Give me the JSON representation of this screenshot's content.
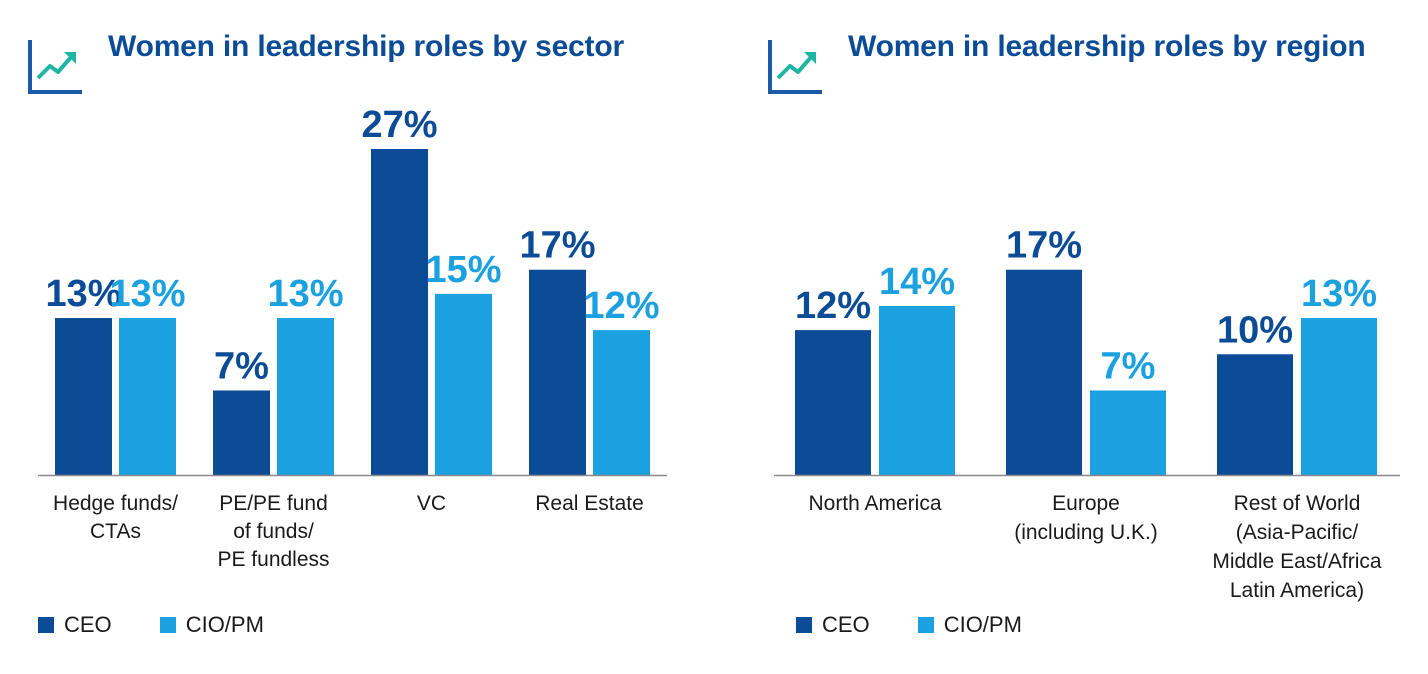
{
  "colors": {
    "ceo": "#0c4c97",
    "cio": "#1ba1df",
    "title": "#0c4c97",
    "icon_axis": "#1a5aa6",
    "icon_line": "#1fb5a3"
  },
  "icons": {
    "title_icon": "line-chart-trend-icon"
  },
  "chart_data": [
    {
      "type": "bar",
      "title": "Women in leadership roles by sector",
      "categories": [
        [
          "Hedge funds/",
          "CTAs"
        ],
        [
          "PE/PE fund",
          "of funds/",
          "PE fundless"
        ],
        [
          "VC"
        ],
        [
          "Real Estate"
        ]
      ],
      "series": [
        {
          "name": "CEO",
          "values": [
            13,
            7,
            27,
            17
          ],
          "labels": [
            "13%",
            "7%",
            "27%",
            "17%"
          ]
        },
        {
          "name": "CIO/PM",
          "values": [
            13,
            13,
            15,
            12
          ],
          "labels": [
            "13%",
            "13%",
            "15%",
            "12%"
          ]
        }
      ],
      "ylim": [
        0,
        27
      ],
      "legend": [
        "CEO",
        "CIO/PM"
      ],
      "legend_position": "bottom-left",
      "grid": false
    },
    {
      "type": "bar",
      "title": "Women in leadership roles by region",
      "categories": [
        [
          "North America"
        ],
        [
          "Europe",
          "(including U.K.)"
        ],
        [
          "Rest of World",
          "(Asia-Pacific/",
          "Middle East/Africa",
          "Latin America)"
        ]
      ],
      "series": [
        {
          "name": "CEO",
          "values": [
            12,
            17,
            10
          ],
          "labels": [
            "12%",
            "17%",
            "10%"
          ]
        },
        {
          "name": "CIO/PM",
          "values": [
            14,
            7,
            13
          ],
          "labels": [
            "14%",
            "7%",
            "13%"
          ]
        }
      ],
      "ylim": [
        0,
        27
      ],
      "legend": [
        "CEO",
        "CIO/PM"
      ],
      "legend_position": "bottom-left",
      "grid": false
    }
  ]
}
